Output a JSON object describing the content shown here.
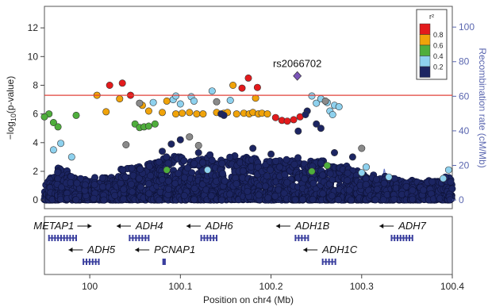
{
  "chart_data": {
    "type": "scatter",
    "title": "",
    "xlabel": "Position on chr4 (Mb)",
    "ylabel": "-log10(p-value)",
    "ylabel_right": "Recombination rate (cM/Mb)",
    "xlim": [
      99.95,
      100.4
    ],
    "ylim": [
      -0.6,
      13.5
    ],
    "ylim_right": [
      -5,
      112
    ],
    "xticks": [
      "100",
      "100.1",
      "100.2",
      "100.3",
      "100.4"
    ],
    "yticks": [
      "0",
      "2",
      "4",
      "6",
      "8",
      "10",
      "12"
    ],
    "yticks_right": [
      "0",
      "20",
      "40",
      "60",
      "80",
      "100"
    ],
    "significance_line": 7.3,
    "lead_snp": {
      "name": "rs2066702",
      "x": 100.229,
      "y": 8.65
    },
    "legend": {
      "title": "r²",
      "placement": "top-right",
      "bins": [
        {
          "label": "0.8",
          "color": "#e31a1c"
        },
        {
          "label": "0.6",
          "color": "#f0a30a"
        },
        {
          "label": "0.4",
          "color": "#4fae3c"
        },
        {
          "label": "0.2",
          "color": "#8ed1ee"
        },
        {
          "label": "",
          "color": "#1c2562"
        }
      ]
    },
    "colors": {
      "red": "#e31a1c",
      "orange": "#f0a30a",
      "green": "#4fae3c",
      "lightblue": "#8ed1ee",
      "navy": "#1c2562",
      "gray": "#8a8a8a",
      "lead": "#7b55b8",
      "sigline": "#e0423a",
      "recomb": "#6a7ac8"
    },
    "highlighted_points": [
      {
        "x": 100.022,
        "y": 8.0,
        "r2": "red"
      },
      {
        "x": 100.036,
        "y": 8.15,
        "r2": "red"
      },
      {
        "x": 100.045,
        "y": 7.3,
        "r2": "red"
      },
      {
        "x": 100.175,
        "y": 8.5,
        "r2": "red"
      },
      {
        "x": 100.168,
        "y": 7.8,
        "r2": "red"
      },
      {
        "x": 100.185,
        "y": 7.85,
        "r2": "red"
      },
      {
        "x": 100.205,
        "y": 5.75,
        "r2": "red"
      },
      {
        "x": 100.212,
        "y": 5.55,
        "r2": "red"
      },
      {
        "x": 100.218,
        "y": 5.5,
        "r2": "red"
      },
      {
        "x": 100.225,
        "y": 5.6,
        "r2": "red"
      },
      {
        "x": 100.232,
        "y": 5.8,
        "r2": "red"
      },
      {
        "x": 100.008,
        "y": 7.3,
        "r2": "orange"
      },
      {
        "x": 100.033,
        "y": 7.05,
        "r2": "orange"
      },
      {
        "x": 100.018,
        "y": 6.15,
        "r2": "orange"
      },
      {
        "x": 100.058,
        "y": 6.6,
        "r2": "orange"
      },
      {
        "x": 100.065,
        "y": 6.2,
        "r2": "orange"
      },
      {
        "x": 100.08,
        "y": 6.1,
        "r2": "orange"
      },
      {
        "x": 100.085,
        "y": 6.9,
        "r2": "orange"
      },
      {
        "x": 100.095,
        "y": 6.0,
        "r2": "orange"
      },
      {
        "x": 100.102,
        "y": 6.05,
        "r2": "orange"
      },
      {
        "x": 100.11,
        "y": 6.1,
        "r2": "orange"
      },
      {
        "x": 100.118,
        "y": 6.0,
        "r2": "orange"
      },
      {
        "x": 100.125,
        "y": 6.0,
        "r2": "orange"
      },
      {
        "x": 100.14,
        "y": 6.1,
        "r2": "orange"
      },
      {
        "x": 100.148,
        "y": 6.05,
        "r2": "orange"
      },
      {
        "x": 100.152,
        "y": 6.1,
        "r2": "orange"
      },
      {
        "x": 100.158,
        "y": 8.0,
        "r2": "orange"
      },
      {
        "x": 100.162,
        "y": 6.0,
        "r2": "orange"
      },
      {
        "x": 100.17,
        "y": 6.05,
        "r2": "orange"
      },
      {
        "x": 100.176,
        "y": 6.0,
        "r2": "orange"
      },
      {
        "x": 100.18,
        "y": 6.1,
        "r2": "orange"
      },
      {
        "x": 100.186,
        "y": 6.0,
        "r2": "orange"
      },
      {
        "x": 100.19,
        "y": 6.05,
        "r2": "orange"
      },
      {
        "x": 100.196,
        "y": 6.0,
        "r2": "orange"
      },
      {
        "x": 100.183,
        "y": 7.1,
        "r2": "orange"
      },
      {
        "x": 99.955,
        "y": 6.0,
        "r2": "green"
      },
      {
        "x": 99.96,
        "y": 5.4,
        "r2": "green"
      },
      {
        "x": 99.965,
        "y": 5.1,
        "r2": "green"
      },
      {
        "x": 99.95,
        "y": 5.8,
        "r2": "green"
      },
      {
        "x": 99.985,
        "y": 5.9,
        "r2": "green"
      },
      {
        "x": 100.05,
        "y": 5.3,
        "r2": "green"
      },
      {
        "x": 100.055,
        "y": 5.05,
        "r2": "green"
      },
      {
        "x": 100.06,
        "y": 5.1,
        "r2": "green"
      },
      {
        "x": 100.065,
        "y": 5.15,
        "r2": "green"
      },
      {
        "x": 100.072,
        "y": 5.3,
        "r2": "green"
      },
      {
        "x": 100.085,
        "y": 2.1,
        "r2": "green"
      },
      {
        "x": 100.245,
        "y": 2.0,
        "r2": "green"
      },
      {
        "x": 100.262,
        "y": 2.4,
        "r2": "green"
      },
      {
        "x": 99.96,
        "y": 3.5,
        "r2": "lightblue"
      },
      {
        "x": 99.968,
        "y": 3.95,
        "r2": "lightblue"
      },
      {
        "x": 99.98,
        "y": 3.0,
        "r2": "lightblue"
      },
      {
        "x": 100.07,
        "y": 6.8,
        "r2": "lightblue"
      },
      {
        "x": 100.092,
        "y": 7.0,
        "r2": "lightblue"
      },
      {
        "x": 100.095,
        "y": 7.25,
        "r2": "lightblue"
      },
      {
        "x": 100.1,
        "y": 6.7,
        "r2": "lightblue"
      },
      {
        "x": 100.112,
        "y": 7.2,
        "r2": "lightblue"
      },
      {
        "x": 100.115,
        "y": 6.9,
        "r2": "lightblue"
      },
      {
        "x": 100.135,
        "y": 7.6,
        "r2": "lightblue"
      },
      {
        "x": 100.155,
        "y": 6.95,
        "r2": "lightblue"
      },
      {
        "x": 100.245,
        "y": 7.25,
        "r2": "lightblue"
      },
      {
        "x": 100.25,
        "y": 6.75,
        "r2": "lightblue"
      },
      {
        "x": 100.255,
        "y": 7.05,
        "r2": "lightblue"
      },
      {
        "x": 100.262,
        "y": 6.8,
        "r2": "lightblue"
      },
      {
        "x": 100.265,
        "y": 6.2,
        "r2": "lightblue"
      },
      {
        "x": 100.27,
        "y": 6.6,
        "r2": "lightblue"
      },
      {
        "x": 100.275,
        "y": 6.5,
        "r2": "lightblue"
      },
      {
        "x": 100.268,
        "y": 5.95,
        "r2": "lightblue"
      },
      {
        "x": 100.13,
        "y": 2.1,
        "r2": "lightblue"
      },
      {
        "x": 100.3,
        "y": 1.9,
        "r2": "lightblue"
      },
      {
        "x": 100.305,
        "y": 2.3,
        "r2": "lightblue"
      },
      {
        "x": 100.33,
        "y": 1.6,
        "r2": "lightblue"
      },
      {
        "x": 100.39,
        "y": 1.5,
        "r2": "lightblue"
      },
      {
        "x": 100.396,
        "y": 2.1,
        "r2": "lightblue"
      },
      {
        "x": 100.055,
        "y": 6.75,
        "r2": "gray"
      },
      {
        "x": 100.11,
        "y": 4.4,
        "r2": "gray"
      },
      {
        "x": 100.12,
        "y": 3.8,
        "r2": "gray"
      },
      {
        "x": 100.14,
        "y": 6.85,
        "r2": "gray"
      },
      {
        "x": 100.26,
        "y": 6.9,
        "r2": "gray"
      },
      {
        "x": 100.04,
        "y": 3.85,
        "r2": "gray"
      },
      {
        "x": 100.3,
        "y": 3.6,
        "r2": "gray"
      },
      {
        "x": 100.145,
        "y": 6.0,
        "r2": "navy"
      },
      {
        "x": 100.148,
        "y": 5.9,
        "r2": "navy"
      },
      {
        "x": 100.24,
        "y": 6.2,
        "r2": "navy"
      },
      {
        "x": 100.238,
        "y": 5.95,
        "r2": "navy"
      },
      {
        "x": 100.25,
        "y": 5.3,
        "r2": "navy"
      },
      {
        "x": 100.255,
        "y": 5.0,
        "r2": "navy"
      },
      {
        "x": 100.23,
        "y": 4.8,
        "r2": "navy"
      },
      {
        "x": 100.1,
        "y": 4.2,
        "r2": "navy"
      },
      {
        "x": 100.09,
        "y": 3.9,
        "r2": "navy"
      },
      {
        "x": 100.08,
        "y": 3.4,
        "r2": "navy"
      },
      {
        "x": 100.12,
        "y": 3.3,
        "r2": "navy"
      },
      {
        "x": 100.18,
        "y": 3.6,
        "r2": "navy"
      },
      {
        "x": 100.2,
        "y": 3.2,
        "r2": "navy"
      },
      {
        "x": 100.27,
        "y": 3.3,
        "r2": "navy"
      },
      {
        "x": 100.29,
        "y": 3.0,
        "r2": "navy"
      }
    ],
    "background_points": {
      "r2": "navy",
      "x": [
        99.952,
        99.96,
        99.97,
        99.98,
        99.99,
        100.0,
        100.01,
        100.02,
        100.03,
        100.04,
        100.05,
        100.06,
        100.07,
        100.08,
        100.09,
        100.1,
        100.11,
        100.12,
        100.13,
        100.14,
        100.15,
        100.16,
        100.17,
        100.18,
        100.19,
        100.2,
        100.21,
        100.22,
        100.23,
        100.24,
        100.25,
        100.26,
        100.27,
        100.28,
        100.29,
        100.3,
        100.31,
        100.32,
        100.33,
        100.34,
        100.35,
        100.36,
        100.37,
        100.38,
        100.39,
        100.398
      ],
      "y_max": [
        1.6,
        1.9,
        2.3,
        1.8,
        1.5,
        1.4,
        1.6,
        1.7,
        1.8,
        2.2,
        2.4,
        2.6,
        2.7,
        3.0,
        3.3,
        3.0,
        2.8,
        2.9,
        3.2,
        3.0,
        2.9,
        3.1,
        3.0,
        2.9,
        2.8,
        2.7,
        2.8,
        2.9,
        3.0,
        2.8,
        2.7,
        2.8,
        2.6,
        2.4,
        2.2,
        2.0,
        1.8,
        1.7,
        1.6,
        1.5,
        1.4,
        1.3,
        1.4,
        1.3,
        1.5,
        1.6
      ]
    },
    "recombination_rate": {
      "x": [
        99.95,
        100.0,
        100.05,
        100.1,
        100.15,
        100.2,
        100.24,
        100.245,
        100.25,
        100.3,
        100.32,
        100.325,
        100.33,
        100.36,
        100.39,
        100.4
      ],
      "y": [
        1,
        1,
        2,
        1,
        1,
        2,
        2,
        12,
        3,
        2,
        3,
        18,
        4,
        2,
        6,
        3
      ]
    },
    "genes": [
      {
        "name": "METAP1",
        "start": 99.955,
        "end": 99.985,
        "strand": "+",
        "row": 0
      },
      {
        "name": "ADH4",
        "start": 100.044,
        "end": 100.065,
        "strand": "-",
        "row": 0
      },
      {
        "name": "ADH6",
        "start": 100.123,
        "end": 100.14,
        "strand": "-",
        "row": 0
      },
      {
        "name": "ADH1B",
        "start": 100.227,
        "end": 100.241,
        "strand": "-",
        "row": 0
      },
      {
        "name": "ADH7",
        "start": 100.333,
        "end": 100.356,
        "strand": "-",
        "row": 0
      },
      {
        "name": "ADH5",
        "start": 99.993,
        "end": 100.01,
        "strand": "-",
        "row": 1
      },
      {
        "name": "PCNAP1",
        "start": 100.081,
        "end": 100.083,
        "strand": "-",
        "row": 1
      },
      {
        "name": "ADH1C",
        "start": 100.257,
        "end": 100.271,
        "strand": "-",
        "row": 1
      }
    ]
  }
}
